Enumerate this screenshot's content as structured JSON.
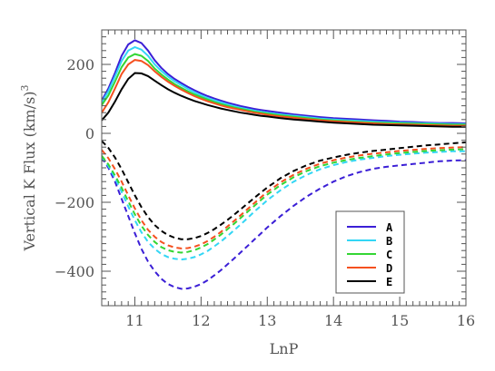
{
  "chart_data": {
    "type": "line",
    "xlabel": "LnP",
    "ylabel_main": "Vertical K Flux (km/s)",
    "ylabel_sup": "3",
    "xlim": [
      10.5,
      16
    ],
    "ylim": [
      -500,
      300
    ],
    "x_ticks": [
      11,
      12,
      13,
      14,
      15,
      16
    ],
    "x_tick_labels": [
      "11",
      "12",
      "13",
      "14",
      "15",
      "16"
    ],
    "y_ticks": [
      -400,
      -200,
      0,
      200
    ],
    "y_tick_labels": [
      "−400",
      "−200",
      "0",
      "200"
    ],
    "legend_placement": "lower-right",
    "x": [
      10.5,
      10.6,
      10.7,
      10.8,
      10.9,
      11.0,
      11.1,
      11.2,
      11.3,
      11.4,
      11.5,
      11.6,
      11.7,
      11.8,
      11.9,
      12.0,
      12.1,
      12.2,
      12.3,
      12.4,
      12.5,
      12.6,
      12.7,
      12.8,
      12.9,
      13.0,
      13.2,
      13.4,
      13.6,
      13.8,
      14.0,
      14.2,
      14.4,
      14.6,
      14.8,
      15.0,
      15.2,
      15.4,
      15.6,
      15.8,
      16.0
    ],
    "series": [
      {
        "name": "A",
        "color": "#3b1fd6",
        "positive": [
          95,
          130,
          175,
          225,
          258,
          270,
          262,
          240,
          212,
          190,
          172,
          158,
          146,
          135,
          125,
          116,
          108,
          101,
          95,
          89,
          84,
          79,
          75,
          71,
          68,
          65,
          60,
          55,
          51,
          47,
          44,
          42,
          40,
          38,
          36,
          34,
          33,
          31,
          30,
          30,
          29
        ],
        "negative": [
          -70,
          -100,
          -140,
          -190,
          -240,
          -290,
          -335,
          -372,
          -400,
          -422,
          -437,
          -446,
          -451,
          -450,
          -445,
          -437,
          -426,
          -412,
          -397,
          -380,
          -363,
          -345,
          -327,
          -309,
          -291,
          -273,
          -240,
          -210,
          -183,
          -160,
          -140,
          -124,
          -112,
          -103,
          -97,
          -93,
          -89,
          -85,
          -81,
          -79,
          -78
        ]
      },
      {
        "name": "B",
        "color": "#33d6f5",
        "positive": [
          90,
          122,
          165,
          210,
          240,
          250,
          243,
          225,
          200,
          181,
          165,
          151,
          140,
          129,
          119,
          110,
          102,
          96,
          90,
          84,
          79,
          74,
          70,
          66,
          63,
          60,
          55,
          51,
          47,
          43,
          40,
          38,
          36,
          34,
          32,
          31,
          30,
          29,
          28,
          27,
          27
        ],
        "negative": [
          -68,
          -95,
          -130,
          -170,
          -212,
          -252,
          -287,
          -315,
          -335,
          -350,
          -359,
          -364,
          -366,
          -364,
          -359,
          -351,
          -341,
          -328,
          -314,
          -298,
          -281,
          -264,
          -246,
          -228,
          -211,
          -194,
          -165,
          -140,
          -120,
          -104,
          -92,
          -83,
          -76,
          -71,
          -66,
          -62,
          -59,
          -56,
          -54,
          -52,
          -52
        ]
      },
      {
        "name": "C",
        "color": "#33d633",
        "positive": [
          82,
          110,
          150,
          192,
          220,
          230,
          225,
          210,
          188,
          171,
          156,
          143,
          132,
          122,
          113,
          105,
          98,
          91,
          85,
          80,
          75,
          71,
          67,
          63,
          60,
          57,
          52,
          48,
          44,
          40,
          37,
          35,
          33,
          31,
          30,
          29,
          28,
          27,
          26,
          25,
          25
        ],
        "negative": [
          -65,
          -90,
          -122,
          -158,
          -197,
          -235,
          -268,
          -295,
          -315,
          -330,
          -339,
          -344,
          -346,
          -344,
          -339,
          -331,
          -321,
          -308,
          -294,
          -278,
          -262,
          -245,
          -228,
          -211,
          -194,
          -178,
          -150,
          -127,
          -109,
          -95,
          -85,
          -77,
          -71,
          -66,
          -61,
          -57,
          -54,
          -51,
          -49,
          -47,
          -46
        ]
      },
      {
        "name": "D",
        "color": "#f5501f",
        "positive": [
          60,
          90,
          130,
          172,
          200,
          213,
          210,
          198,
          180,
          164,
          150,
          138,
          127,
          117,
          108,
          100,
          93,
          87,
          81,
          76,
          72,
          68,
          64,
          60,
          57,
          54,
          49,
          45,
          41,
          38,
          35,
          33,
          31,
          29,
          27,
          26,
          25,
          24,
          23,
          22,
          22
        ],
        "negative": [
          -48,
          -72,
          -104,
          -140,
          -180,
          -218,
          -252,
          -280,
          -300,
          -315,
          -325,
          -331,
          -334,
          -333,
          -329,
          -322,
          -312,
          -300,
          -286,
          -270,
          -254,
          -237,
          -220,
          -203,
          -186,
          -170,
          -142,
          -120,
          -102,
          -88,
          -78,
          -70,
          -64,
          -59,
          -55,
          -51,
          -48,
          -45,
          -43,
          -41,
          -40
        ]
      },
      {
        "name": "E",
        "color": "#000000",
        "positive": [
          38,
          60,
          92,
          128,
          158,
          175,
          174,
          166,
          153,
          140,
          128,
          118,
          109,
          101,
          94,
          88,
          82,
          77,
          72,
          68,
          64,
          60,
          57,
          54,
          51,
          49,
          44,
          40,
          37,
          34,
          31,
          29,
          27,
          25,
          24,
          23,
          22,
          21,
          20,
          19,
          19
        ],
        "negative": [
          -22,
          -42,
          -70,
          -104,
          -142,
          -180,
          -214,
          -243,
          -266,
          -283,
          -295,
          -303,
          -307,
          -307,
          -304,
          -298,
          -289,
          -278,
          -265,
          -251,
          -236,
          -220,
          -204,
          -188,
          -172,
          -157,
          -130,
          -109,
          -92,
          -79,
          -70,
          -62,
          -56,
          -51,
          -47,
          -43,
          -39,
          -35,
          -32,
          -29,
          -26
        ]
      }
    ]
  }
}
